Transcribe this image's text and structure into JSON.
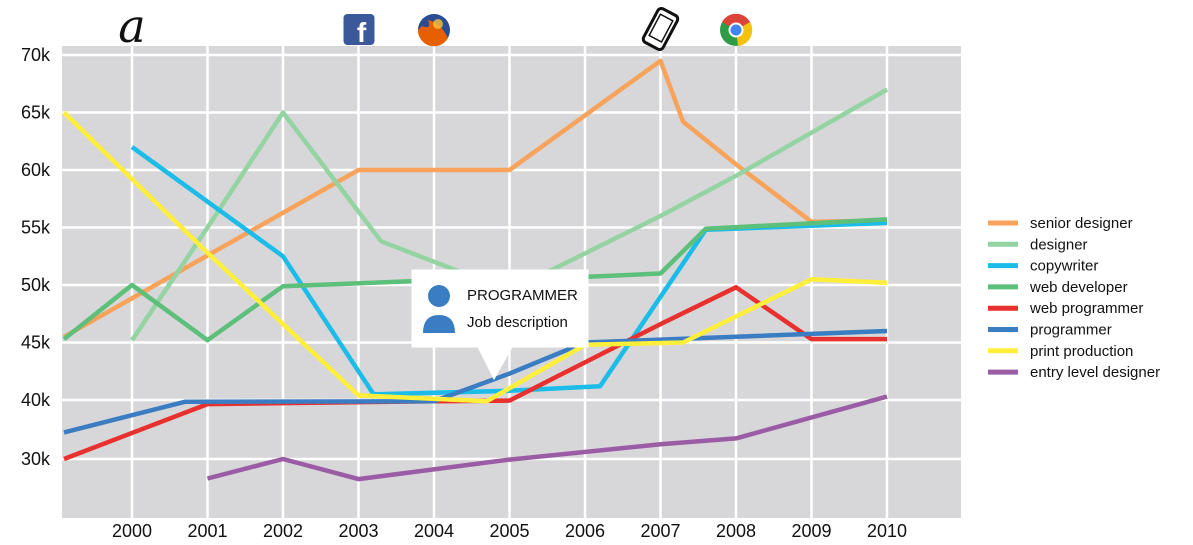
{
  "chart_data": {
    "type": "line",
    "title": "",
    "xlabel": "",
    "ylabel": "",
    "x_ticks": [
      2000,
      2001,
      2002,
      2003,
      2004,
      2005,
      2006,
      2007,
      2008,
      2009,
      2010
    ],
    "y_ticks": [
      {
        "value": 30,
        "label": "30k"
      },
      {
        "value": 40,
        "label": "40k"
      },
      {
        "value": 45,
        "label": "45k"
      },
      {
        "value": 50,
        "label": "50k"
      },
      {
        "value": 55,
        "label": "55k"
      },
      {
        "value": 60,
        "label": "60k"
      },
      {
        "value": 65,
        "label": "65k"
      },
      {
        "value": 70,
        "label": "70k"
      }
    ],
    "xlim": [
      1999.1,
      2010
    ],
    "y_scale": "piecewise: 30k–40k band compressed to the height of one 5k step",
    "grid": true,
    "legend_position": "right",
    "series": [
      {
        "name": "senior designer",
        "color": "#F7A35C",
        "points": [
          [
            1999.1,
            45.5
          ],
          [
            2003.0,
            60
          ],
          [
            2005.0,
            60
          ],
          [
            2007.0,
            69.5
          ],
          [
            2007.3,
            64.2
          ],
          [
            2008.0,
            60.5
          ],
          [
            2009.0,
            55.5
          ],
          [
            2010,
            55.6
          ]
        ]
      },
      {
        "name": "designer",
        "color": "#94D3A2",
        "points": [
          [
            2000.0,
            45.2
          ],
          [
            2001.0,
            55
          ],
          [
            2002.0,
            65
          ],
          [
            2003.3,
            53.8
          ],
          [
            2005.0,
            49.5
          ],
          [
            2007.0,
            56
          ],
          [
            2008.0,
            59.5
          ],
          [
            2010,
            67
          ]
        ]
      },
      {
        "name": "copywriter",
        "color": "#1BBCE8",
        "points": [
          [
            2000.0,
            62
          ],
          [
            2002.0,
            52.5
          ],
          [
            2003.2,
            40.5
          ],
          [
            2005.0,
            40.8
          ],
          [
            2006.2,
            41.2
          ],
          [
            2007.6,
            54.8
          ],
          [
            2010,
            55.4
          ]
        ]
      },
      {
        "name": "web developer",
        "color": "#5CBF7A",
        "points": [
          [
            1999.1,
            45.3
          ],
          [
            2000.0,
            50
          ],
          [
            2001.0,
            45.2
          ],
          [
            2002.0,
            49.9
          ],
          [
            2004.0,
            50.4
          ],
          [
            2006.0,
            50.7
          ],
          [
            2007.0,
            51
          ],
          [
            2007.6,
            54.9
          ],
          [
            2010,
            55.7
          ]
        ]
      },
      {
        "name": "web programmer",
        "color": "#E8302E",
        "points": [
          [
            1999.1,
            30
          ],
          [
            2001.0,
            39.3
          ],
          [
            2004.0,
            39.8
          ],
          [
            2005.0,
            39.9
          ],
          [
            2007.0,
            46.6
          ],
          [
            2008.0,
            49.8
          ],
          [
            2009.0,
            45.3
          ],
          [
            2010,
            45.3
          ]
        ]
      },
      {
        "name": "programmer",
        "color": "#3A7DC2",
        "points": [
          [
            1999.1,
            34.5
          ],
          [
            2000.7,
            39.7
          ],
          [
            2004.0,
            39.8
          ],
          [
            2005.0,
            42.3
          ],
          [
            2006.0,
            45
          ],
          [
            2008.0,
            45.5
          ],
          [
            2010,
            46
          ]
        ]
      },
      {
        "name": "print production",
        "color": "#FFEF3A",
        "points": [
          [
            1999.1,
            65
          ],
          [
            2001.0,
            52.8
          ],
          [
            2003.0,
            40.4
          ],
          [
            2004.7,
            39.8
          ],
          [
            2006.0,
            44.8
          ],
          [
            2007.3,
            45
          ],
          [
            2009.0,
            50.5
          ],
          [
            2010,
            50.2
          ]
        ]
      },
      {
        "name": "entry level designer",
        "color": "#9A5CA4",
        "points": [
          [
            2001.0,
            26.7
          ],
          [
            2002.0,
            30
          ],
          [
            2003.0,
            26.6
          ],
          [
            2005.0,
            29.9
          ],
          [
            2007.0,
            32.5
          ],
          [
            2008.0,
            33.5
          ],
          [
            2010,
            40.3
          ]
        ]
      }
    ],
    "annotations": [
      {
        "kind": "brand-letter",
        "text": "a",
        "x": 2000.0
      },
      {
        "kind": "facebook-icon",
        "text": "f",
        "x": 2003.0
      },
      {
        "kind": "firefox-icon",
        "x": 2004.0
      },
      {
        "kind": "phone-icon",
        "x": 2007.0
      },
      {
        "kind": "chrome-icon",
        "x": 2008.0
      }
    ]
  },
  "tooltip": {
    "title": "PROGRAMMER",
    "subtitle": "Job description",
    "anchor_x": 2004.85,
    "anchor_y": 41.9
  }
}
